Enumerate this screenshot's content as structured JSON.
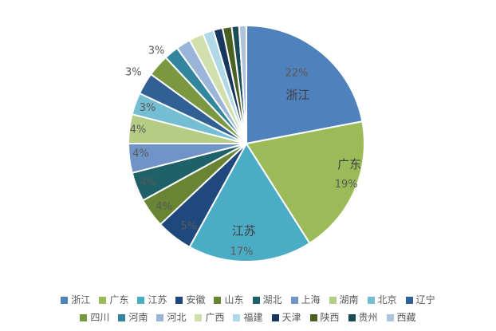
{
  "chart_data": {
    "type": "pie",
    "title": "",
    "legend_position": "bottom",
    "start_angle_deg": 0,
    "direction": "clockwise",
    "background": "#FFFFFF",
    "slice_border_color": "#FFFFFF",
    "name_label_color": "#3F3F3F",
    "pct_label_color": "#595959",
    "legend_text_color": "#595959",
    "slices": [
      {
        "name": "浙江",
        "value": 22,
        "pct_label": "22%",
        "label_lines": [
          "22%",
          "浙江"
        ],
        "color": "#4F81BD"
      },
      {
        "name": "广东",
        "value": 19,
        "pct_label": "19%",
        "label_lines": [
          "广东",
          "19%"
        ],
        "color": "#9BBB59"
      },
      {
        "name": "江苏",
        "value": 17,
        "pct_label": "17%",
        "label_lines": [
          "江苏",
          "17%"
        ],
        "color": "#4BACC6"
      },
      {
        "name": "安徽",
        "value": 5,
        "pct_label": "5%",
        "label_lines": [
          "5%"
        ],
        "color": "#1F497D",
        "label_color": "#2B4A6F"
      },
      {
        "name": "山东",
        "value": 4,
        "pct_label": "4%",
        "label_lines": [
          "4%"
        ],
        "color": "#698433"
      },
      {
        "name": "湖北",
        "value": 4,
        "pct_label": "4%",
        "label_lines": [
          "4%"
        ],
        "color": "#1F6169",
        "label_color": "#2F4A52"
      },
      {
        "name": "上海",
        "value": 4,
        "pct_label": "4%",
        "label_lines": [
          "4%"
        ],
        "color": "#7094C7"
      },
      {
        "name": "湖南",
        "value": 4,
        "pct_label": "4%",
        "label_lines": [
          "4%"
        ],
        "color": "#B5CC85"
      },
      {
        "name": "北京",
        "value": 3,
        "pct_label": "3%",
        "label_lines": [
          "3%"
        ],
        "color": "#73BED3"
      },
      {
        "name": "辽宁",
        "value": 3,
        "pct_label": "3%",
        "label_lines": [
          "3%"
        ],
        "color": "#316094"
      },
      {
        "name": "四川",
        "value": 3,
        "pct_label": "3%",
        "label_lines": [
          "3%"
        ],
        "color": "#7A9840"
      },
      {
        "name": "河南",
        "value": 2,
        "pct_label": "",
        "label_lines": [],
        "color": "#31859C"
      },
      {
        "name": "河北",
        "value": 2,
        "pct_label": "",
        "label_lines": [],
        "color": "#9BB5D9"
      },
      {
        "name": "广西",
        "value": 2,
        "pct_label": "",
        "label_lines": [],
        "color": "#D0DFAC"
      },
      {
        "name": "福建",
        "value": 1.5,
        "pct_label": "",
        "label_lines": [],
        "color": "#AFD9E6"
      },
      {
        "name": "天津",
        "value": 1.25,
        "pct_label": "",
        "label_lines": [],
        "color": "#17375E"
      },
      {
        "name": "陕西",
        "value": 1.25,
        "pct_label": "",
        "label_lines": [],
        "color": "#4A6121"
      },
      {
        "name": "贵州",
        "value": 1,
        "pct_label": "",
        "label_lines": [],
        "color": "#1A4C57"
      },
      {
        "name": "西藏",
        "value": 1,
        "pct_label": "",
        "label_lines": [],
        "color": "#AFC3DC"
      }
    ]
  }
}
